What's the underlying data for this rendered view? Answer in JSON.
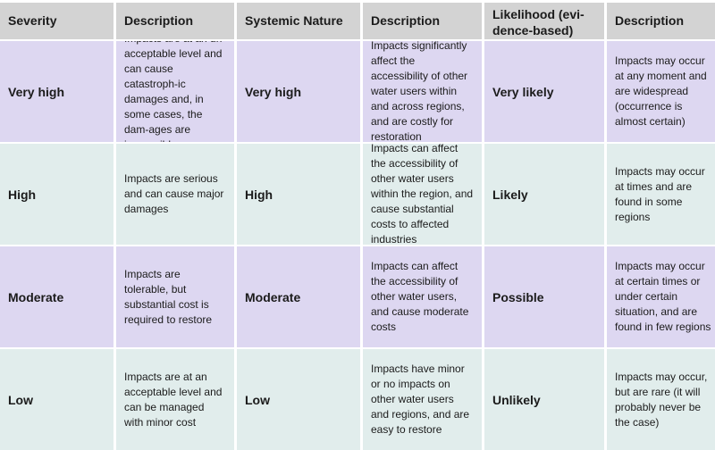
{
  "headers": [
    "Severity",
    "Description",
    "Systemic Nature",
    "Description",
    "Likelihood (evi-dence-based)",
    "Description"
  ],
  "rows": [
    {
      "severity": "Very high",
      "severity_desc": "Impacts are at an un-acceptable level and can cause catastroph-ic damages and, in some cases, the dam-ages are irreversible",
      "systemic": "Very high",
      "systemic_desc": "Impacts significantly affect the accessibility of other water users within and across regions, and are costly for restoration",
      "likelihood": "Very likely",
      "likelihood_desc": "Impacts may occur at any moment and are widespread (occurrence is almost certain)",
      "color": "#ddd7f1"
    },
    {
      "severity": "High",
      "severity_desc": "Impacts are serious and can cause major damages",
      "systemic": "High",
      "systemic_desc": "Impacts can affect the accessibility of other water users within the region, and cause substantial costs to affected industries",
      "likelihood": "Likely",
      "likelihood_desc": "Impacts may occur at times and are found in some regions",
      "color": "#e1edec"
    },
    {
      "severity": "Moderate",
      "severity_desc": "Impacts are tolerable, but substantial cost is required to restore",
      "systemic": "Moderate",
      "systemic_desc": "Impacts can affect the accessibility of other water users, and cause moderate costs",
      "likelihood": "Possible",
      "likelihood_desc": "Impacts may occur at certain times or under certain situation, and are found in few regions",
      "color": "#ddd7f1"
    },
    {
      "severity": "Low",
      "severity_desc": "Impacts are at an acceptable level and can be managed with minor cost",
      "systemic": "Low",
      "systemic_desc": "Impacts have minor or no impacts on other water users and regions, and are easy to restore",
      "likelihood": "Unlikely",
      "likelihood_desc": "Impacts may occur, but are rare (it will probably never be the case)",
      "color": "#e1edec"
    }
  ]
}
